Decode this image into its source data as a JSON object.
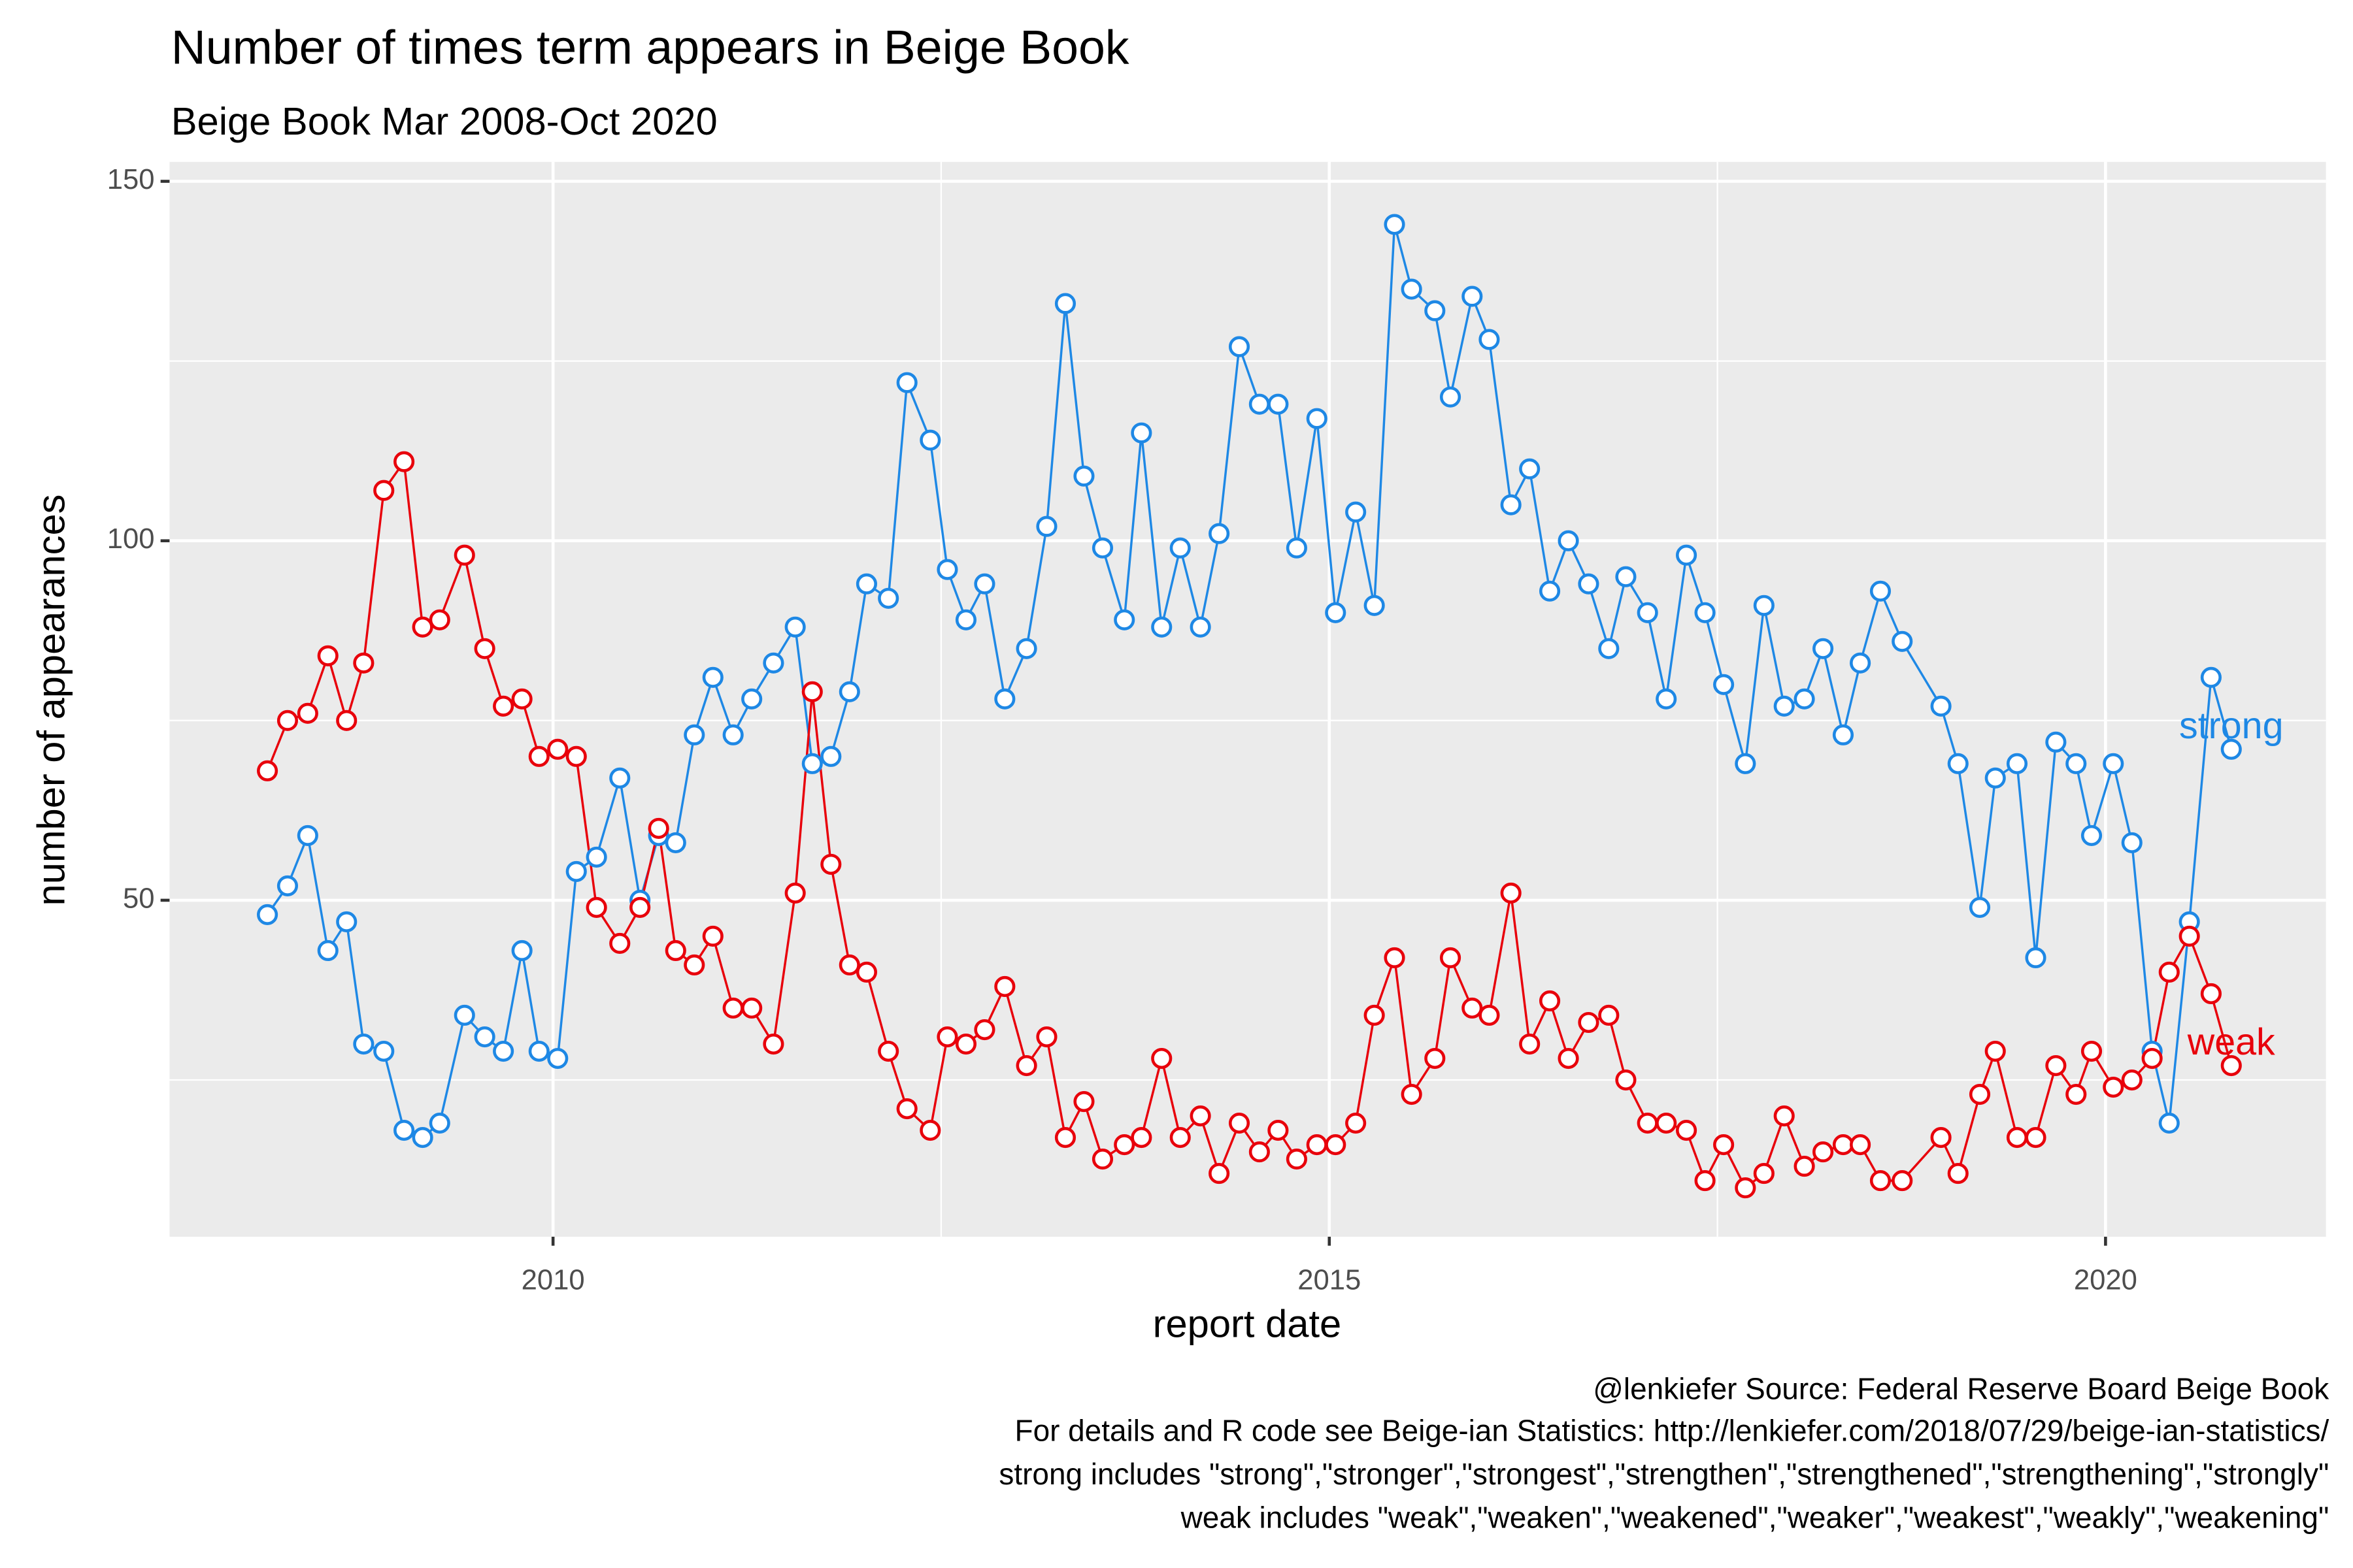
{
  "chart_data": {
    "type": "line",
    "title": "Number of times term appears in Beige Book",
    "subtitle": "Beige Book Mar 2008-Oct 2020",
    "xlabel": "report date",
    "ylabel": "number of appearances",
    "caption": [
      "@lenkiefer Source: Federal Reserve Board Beige Book",
      "For details and R code see Beige-ian Statistics: http://lenkiefer.com/2018/07/29/beige-ian-statistics/",
      "strong includes \"strong\",\"stronger\",\"strongest\",\"strengthen\",\"strengthened\",\"strengthening\",\"strongly\"",
      "weak includes  \"weak\",\"weaken\",\"weakened\",\"weaker\",\"weakest\",\"weakly\",\"weakening\""
    ],
    "x": [
      2008.16,
      2008.29,
      2008.42,
      2008.55,
      2008.67,
      2008.78,
      2008.91,
      2009.04,
      2009.16,
      2009.27,
      2009.43,
      2009.56,
      2009.68,
      2009.8,
      2009.91,
      2010.03,
      2010.15,
      2010.28,
      2010.43,
      2010.56,
      2010.68,
      2010.79,
      2010.91,
      2011.03,
      2011.16,
      2011.28,
      2011.42,
      2011.56,
      2011.67,
      2011.79,
      2011.91,
      2012.02,
      2012.16,
      2012.28,
      2012.43,
      2012.54,
      2012.66,
      2012.78,
      2012.91,
      2013.05,
      2013.18,
      2013.3,
      2013.42,
      2013.54,
      2013.68,
      2013.79,
      2013.92,
      2014.04,
      2014.17,
      2014.29,
      2014.42,
      2014.55,
      2014.67,
      2014.79,
      2014.92,
      2015.04,
      2015.17,
      2015.29,
      2015.42,
      2015.53,
      2015.68,
      2015.78,
      2015.92,
      2016.03,
      2016.17,
      2016.29,
      2016.42,
      2016.54,
      2016.67,
      2016.8,
      2016.91,
      2017.05,
      2017.17,
      2017.3,
      2017.42,
      2017.54,
      2017.68,
      2017.8,
      2017.93,
      2018.06,
      2018.18,
      2018.31,
      2018.42,
      2018.55,
      2018.69,
      2018.94,
      2019.05,
      2019.19,
      2019.29,
      2019.43,
      2019.55,
      2019.68,
      2019.81,
      2019.91,
      2020.05,
      2020.17,
      2020.3,
      2020.41,
      2020.54,
      2020.68,
      2020.81
    ],
    "series": [
      {
        "name": "strong",
        "color": "#1e88e5",
        "values": [
          48,
          52,
          59,
          43,
          47,
          30,
          29,
          18,
          17,
          19,
          34,
          31,
          29,
          43,
          29,
          28,
          54,
          56,
          67,
          50,
          59,
          58,
          73,
          81,
          73,
          78,
          83,
          88,
          69,
          70,
          79,
          94,
          92,
          122,
          114,
          96,
          89,
          94,
          78,
          85,
          102,
          133,
          109,
          99,
          89,
          115,
          88,
          99,
          88,
          101,
          127,
          119,
          119,
          99,
          117,
          90,
          104,
          91,
          144,
          135,
          132,
          120,
          134,
          128,
          105,
          110,
          93,
          100,
          94,
          85,
          95,
          90,
          78,
          98,
          90,
          80,
          69,
          91,
          77,
          78,
          85,
          73,
          83,
          93,
          86,
          77,
          69,
          49,
          67,
          69,
          42,
          72,
          69,
          59,
          69,
          58,
          29,
          19,
          47,
          81,
          71
        ]
      },
      {
        "name": "weak",
        "color": "#e8000b",
        "values": [
          68,
          75,
          76,
          84,
          75,
          83,
          107,
          111,
          88,
          89,
          98,
          85,
          77,
          78,
          70,
          71,
          70,
          49,
          44,
          49,
          60,
          43,
          41,
          45,
          35,
          35,
          30,
          51,
          79,
          55,
          41,
          40,
          29,
          21,
          18,
          31,
          30,
          32,
          38,
          27,
          31,
          17,
          22,
          14,
          16,
          17,
          28,
          17,
          20,
          12,
          19,
          15,
          18,
          14,
          16,
          16,
          19,
          34,
          42,
          23,
          28,
          42,
          35,
          34,
          51,
          30,
          36,
          28,
          33,
          34,
          25,
          19,
          19,
          18,
          11,
          16,
          10,
          12,
          20,
          13,
          15,
          16,
          16,
          11,
          11,
          17,
          12,
          23,
          29,
          17,
          17,
          27,
          23,
          29,
          24,
          25,
          28,
          40,
          45,
          37,
          27
        ]
      }
    ],
    "xlim": [
      2007.53,
      2021.42
    ],
    "xticks": [
      2010,
      2015,
      2020
    ],
    "minor_xticks": [
      2012.5,
      2017.5
    ],
    "ylim": [
      3.2,
      152.7
    ],
    "yticks": [
      50,
      100,
      150
    ],
    "minor_yticks": [
      25,
      75,
      125
    ],
    "grid": true
  }
}
